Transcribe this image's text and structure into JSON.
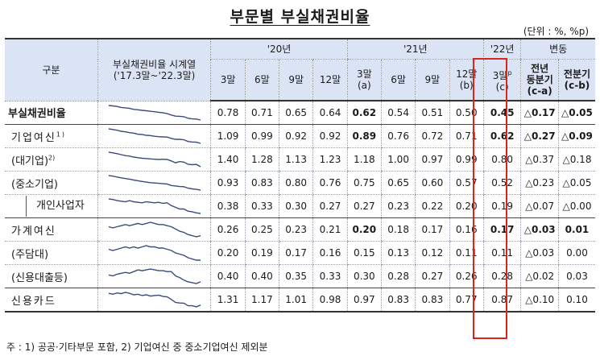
{
  "title": "부문별 부실채권비율",
  "unit": "(단위 : %, %p)",
  "headers": {
    "group": "구분",
    "series": "부실채권비율 시계열",
    "series_range": "('17.3말~'22.3말)",
    "y20": "'20년",
    "y21": "'21년",
    "y22": "'22년",
    "change": "변동",
    "cols20": [
      "3말",
      "6말",
      "9말",
      "12말"
    ],
    "cols21_a_top": "3말",
    "cols21_a_bot": "(a)",
    "cols21_mid": [
      "6말",
      "9말"
    ],
    "cols21_b_top": "12말",
    "cols21_b_bot": "(b)",
    "col22_top": "3말",
    "col22_sup": "p",
    "col22_bot": "(c)",
    "chg1_l1": "전년",
    "chg1_l2": "동분기",
    "chg1_l3": "(c-a)",
    "chg2_l1": "전분기",
    "chg2_l2": "(c-b)"
  },
  "rows": [
    {
      "label": "부실채권비율",
      "sup": "",
      "values": [
        "0.78",
        "0.71",
        "0.65",
        "0.64",
        "0.62",
        "0.54",
        "0.51",
        "0.50",
        "0.45"
      ],
      "chg_yoy": "△0.17",
      "chg_qoq": "△0.05",
      "spark": [
        1.2,
        1.18,
        1.15,
        1.1,
        1.08,
        1.05,
        1.0,
        0.98,
        0.95,
        0.93,
        0.9,
        0.88,
        0.85,
        0.82,
        0.78,
        0.71,
        0.65,
        0.64,
        0.62,
        0.54,
        0.51,
        0.5,
        0.45
      ]
    },
    {
      "label": "기업여신",
      "sup": "1)",
      "values": [
        "1.09",
        "0.99",
        "0.92",
        "0.92",
        "0.89",
        "0.76",
        "0.72",
        "0.71",
        "0.62"
      ],
      "chg_yoy": "△0.27",
      "chg_qoq": "△0.09",
      "spark": [
        1.7,
        1.65,
        1.6,
        1.52,
        1.48,
        1.42,
        1.38,
        1.3,
        1.28,
        1.22,
        1.2,
        1.15,
        1.12,
        1.1,
        1.09,
        0.99,
        0.92,
        0.92,
        0.89,
        0.76,
        0.72,
        0.71,
        0.62
      ]
    },
    {
      "label": "(대기업)",
      "sup": "2)",
      "values": [
        "1.40",
        "1.28",
        "1.13",
        "1.23",
        "1.18",
        "1.00",
        "0.97",
        "0.99",
        "0.80"
      ],
      "chg_yoy": "△0.37",
      "chg_qoq": "△0.18",
      "spark": [
        2.0,
        1.95,
        1.88,
        1.8,
        1.72,
        1.68,
        1.6,
        1.55,
        1.5,
        1.48,
        1.45,
        1.42,
        1.4,
        1.42,
        1.4,
        1.28,
        1.13,
        1.23,
        1.18,
        1.0,
        0.97,
        0.99,
        0.8
      ]
    },
    {
      "label": "(중소기업)",
      "sup": "",
      "values": [
        "0.93",
        "0.83",
        "0.80",
        "0.76",
        "0.75",
        "0.65",
        "0.60",
        "0.57",
        "0.52"
      ],
      "chg_yoy": "△0.23",
      "chg_qoq": "△0.05",
      "spark": [
        1.5,
        1.46,
        1.4,
        1.35,
        1.3,
        1.26,
        1.2,
        1.15,
        1.1,
        1.06,
        1.02,
        1.0,
        0.98,
        0.95,
        0.93,
        0.83,
        0.8,
        0.76,
        0.75,
        0.65,
        0.6,
        0.57,
        0.52
      ]
    },
    {
      "label": "개인사업자",
      "sup": "",
      "values": [
        "0.38",
        "0.33",
        "0.30",
        "0.27",
        "0.27",
        "0.23",
        "0.22",
        "0.20",
        "0.19"
      ],
      "chg_yoy": "△0.07",
      "chg_qoq": "△0.00",
      "spark": [
        0.45,
        0.44,
        0.42,
        0.41,
        0.4,
        0.42,
        0.4,
        0.39,
        0.38,
        0.4,
        0.39,
        0.38,
        0.39,
        0.37,
        0.38,
        0.33,
        0.3,
        0.27,
        0.27,
        0.23,
        0.22,
        0.2,
        0.19
      ]
    },
    {
      "label": "가계여신",
      "sup": "",
      "values": [
        "0.26",
        "0.25",
        "0.23",
        "0.21",
        "0.20",
        "0.18",
        "0.17",
        "0.16",
        "0.17"
      ],
      "chg_yoy": "△0.03",
      "chg_qoq": "0.01",
      "spark": [
        0.25,
        0.24,
        0.25,
        0.26,
        0.27,
        0.26,
        0.27,
        0.28,
        0.27,
        0.28,
        0.29,
        0.28,
        0.27,
        0.27,
        0.26,
        0.25,
        0.23,
        0.21,
        0.2,
        0.18,
        0.17,
        0.16,
        0.17
      ]
    },
    {
      "label": "(주담대)",
      "sup": "",
      "values": [
        "0.20",
        "0.19",
        "0.17",
        "0.16",
        "0.15",
        "0.13",
        "0.12",
        "0.11",
        "0.11"
      ],
      "chg_yoy": "△0.03",
      "chg_qoq": "0.00",
      "spark": [
        0.2,
        0.19,
        0.2,
        0.21,
        0.22,
        0.21,
        0.22,
        0.21,
        0.22,
        0.23,
        0.22,
        0.22,
        0.21,
        0.21,
        0.2,
        0.19,
        0.17,
        0.16,
        0.15,
        0.13,
        0.12,
        0.11,
        0.11
      ]
    },
    {
      "label": "(신용대출등)",
      "sup": "",
      "values": [
        "0.40",
        "0.40",
        "0.35",
        "0.33",
        "0.30",
        "0.28",
        "0.27",
        "0.26",
        "0.28"
      ],
      "chg_yoy": "△0.02",
      "chg_qoq": "0.03",
      "spark": [
        0.36,
        0.35,
        0.37,
        0.38,
        0.39,
        0.38,
        0.4,
        0.42,
        0.41,
        0.42,
        0.43,
        0.42,
        0.41,
        0.41,
        0.4,
        0.4,
        0.35,
        0.33,
        0.3,
        0.28,
        0.27,
        0.26,
        0.28
      ]
    },
    {
      "label": "신용카드",
      "sup": "",
      "values": [
        "1.31",
        "1.17",
        "1.01",
        "0.98",
        "0.97",
        "0.83",
        "0.83",
        "0.77",
        "0.87"
      ],
      "chg_yoy": "△0.10",
      "chg_qoq": "0.10",
      "spark": [
        1.5,
        1.45,
        1.52,
        1.48,
        1.55,
        1.5,
        1.42,
        1.45,
        1.38,
        1.42,
        1.35,
        1.38,
        1.4,
        1.33,
        1.31,
        1.17,
        1.01,
        0.98,
        0.97,
        0.83,
        0.83,
        0.77,
        0.87
      ]
    }
  ],
  "footnote": "주 : 1) 공공·기타부문 포함,  2) 기업여신 중 중소기업여신 제외분"
}
